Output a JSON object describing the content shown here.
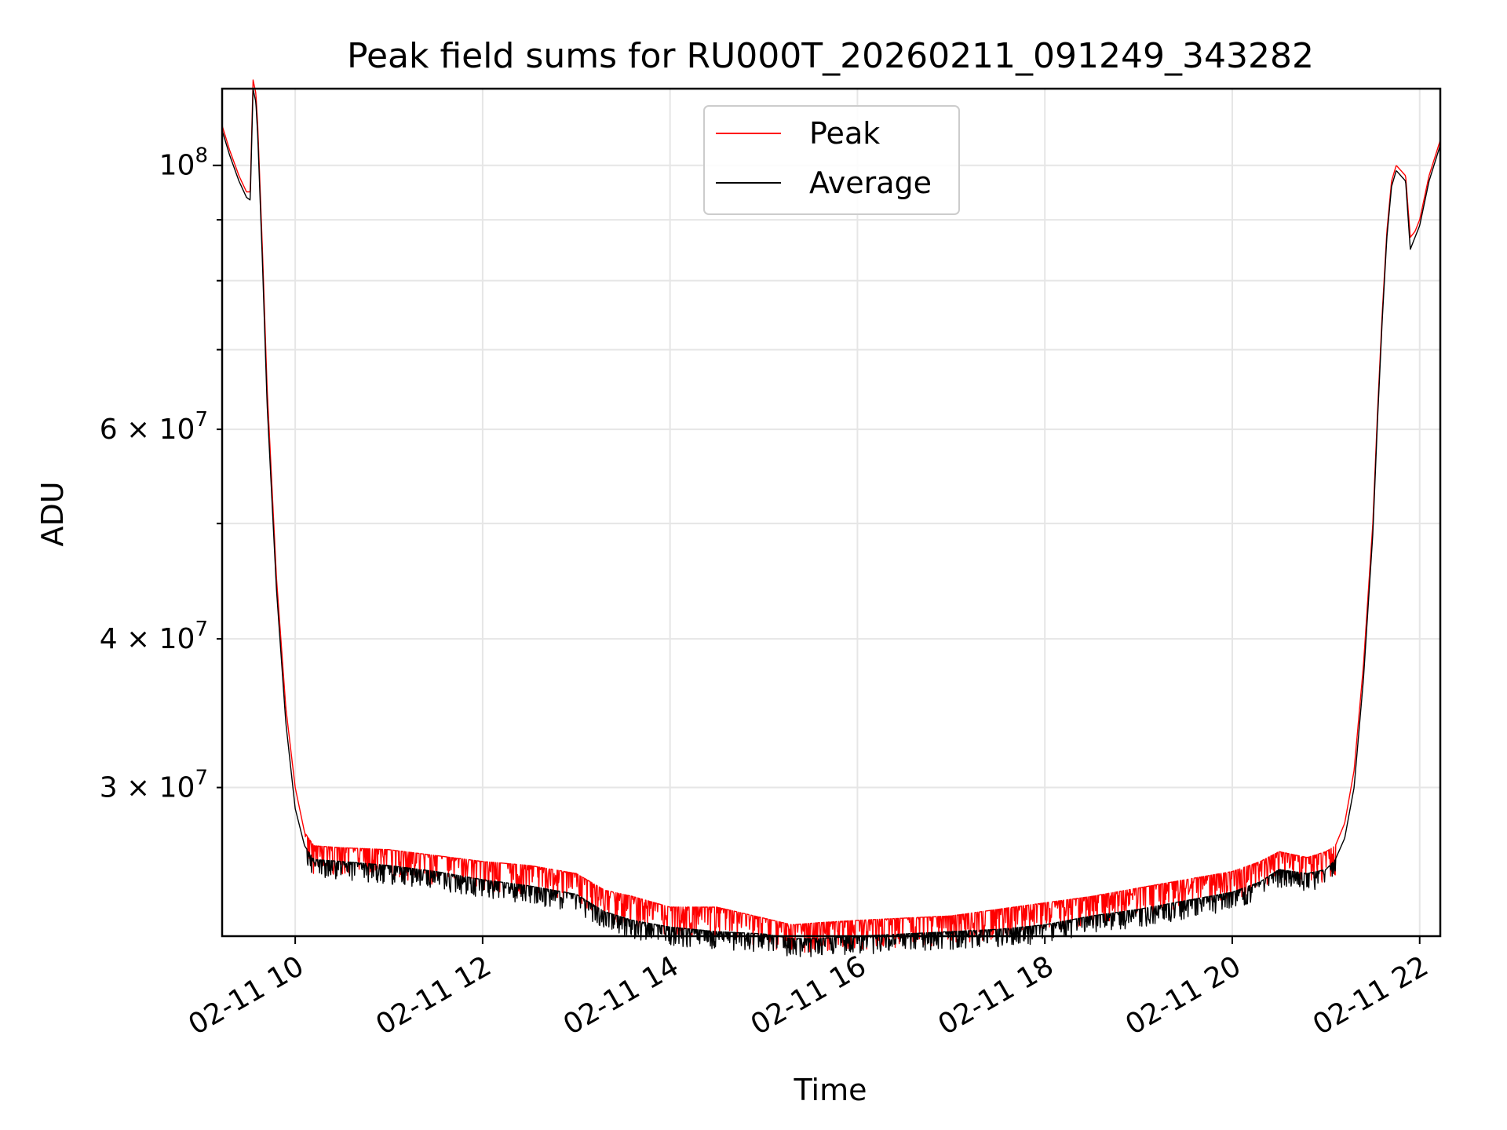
{
  "chart_data": {
    "type": "line",
    "title": "Peak field sums for RU000T_20260211_091249_343282",
    "xlabel": "Time",
    "ylabel": "ADU",
    "x_unit": "hours since 02-11 00:00",
    "xlim": [
      9.22,
      22.22
    ],
    "ylim": [
      22500000.0,
      116000000.0
    ],
    "yscale": "log",
    "grid": true,
    "legend_position": "top-center",
    "x_ticks": [
      {
        "value": 10,
        "label": "02-11 10"
      },
      {
        "value": 12,
        "label": "02-11 12"
      },
      {
        "value": 14,
        "label": "02-11 14"
      },
      {
        "value": 16,
        "label": "02-11 16"
      },
      {
        "value": 18,
        "label": "02-11 18"
      },
      {
        "value": 20,
        "label": "02-11 20"
      },
      {
        "value": 22,
        "label": "02-11 22"
      }
    ],
    "y_ticks_major": [
      {
        "value": 100000000,
        "label_base": "10",
        "label_exp": "8",
        "label_mult": ""
      }
    ],
    "y_ticks_minor": [
      {
        "value": 30000000,
        "label_base": "3 × 10",
        "label_exp": "7"
      },
      {
        "value": 40000000,
        "label_base": "4 × 10",
        "label_exp": "7"
      },
      {
        "value": 50000000,
        "label_base": "",
        "label_exp": ""
      },
      {
        "value": 60000000,
        "label_base": "6 × 10",
        "label_exp": "7"
      },
      {
        "value": 70000000,
        "label_base": "",
        "label_exp": ""
      },
      {
        "value": 80000000,
        "label_base": "",
        "label_exp": ""
      },
      {
        "value": 90000000,
        "label_base": "",
        "label_exp": ""
      }
    ],
    "series": [
      {
        "name": "Peak",
        "color": "#ff0000",
        "x": [
          9.22,
          9.3,
          9.4,
          9.48,
          9.52,
          9.55,
          9.58,
          9.6,
          9.65,
          9.7,
          9.8,
          9.9,
          10.0,
          10.1,
          10.2,
          10.5,
          11.0,
          11.5,
          12.0,
          12.5,
          13.0,
          13.3,
          13.6,
          14.0,
          14.5,
          15.0,
          15.3,
          15.6,
          16.0,
          16.5,
          17.0,
          17.5,
          18.0,
          18.5,
          19.0,
          19.5,
          20.0,
          20.3,
          20.5,
          20.8,
          21.0,
          21.1,
          21.2,
          21.3,
          21.4,
          21.5,
          21.55,
          21.6,
          21.65,
          21.7,
          21.75,
          21.8,
          21.85,
          21.9,
          21.95,
          22.0,
          22.1,
          22.22
        ],
        "values": [
          108000000,
          103000000,
          98000000,
          95000000,
          95000000,
          118000000,
          115000000,
          108000000,
          85000000,
          65000000,
          45000000,
          35000000,
          30000000,
          27500000,
          26800000,
          26700000,
          26600000,
          26300000,
          26000000,
          25800000,
          25400000,
          24600000,
          24300000,
          23800000,
          23800000,
          23300000,
          23000000,
          23100000,
          23200000,
          23300000,
          23400000,
          23700000,
          24000000,
          24300000,
          24700000,
          25100000,
          25500000,
          26000000,
          26500000,
          26200000,
          26500000,
          26800000,
          28000000,
          31000000,
          38000000,
          50000000,
          62000000,
          75000000,
          88000000,
          97000000,
          100000000,
          99000000,
          98000000,
          87000000,
          88000000,
          90000000,
          98000000,
          105000000
        ]
      },
      {
        "name": "Average",
        "color": "#000000",
        "x": [
          9.22,
          9.3,
          9.4,
          9.48,
          9.52,
          9.55,
          9.58,
          9.6,
          9.65,
          9.7,
          9.8,
          9.9,
          10.0,
          10.1,
          10.2,
          10.5,
          11.0,
          11.5,
          12.0,
          12.5,
          13.0,
          13.3,
          13.6,
          14.0,
          14.5,
          15.0,
          15.3,
          15.6,
          16.0,
          16.5,
          17.0,
          17.5,
          18.0,
          18.5,
          19.0,
          19.5,
          20.0,
          20.3,
          20.5,
          20.8,
          21.0,
          21.1,
          21.2,
          21.3,
          21.4,
          21.5,
          21.55,
          21.6,
          21.65,
          21.7,
          21.75,
          21.8,
          21.85,
          21.9,
          21.95,
          22.0,
          22.1,
          22.22
        ],
        "values": [
          107000000,
          102000000,
          97000000,
          94000000,
          93500000,
          116000000,
          113000000,
          106000000,
          83000000,
          63000000,
          44000000,
          34000000,
          28800000,
          26800000,
          26100000,
          26000000,
          25800000,
          25500000,
          25100000,
          24800000,
          24400000,
          23600000,
          23200000,
          22900000,
          22700000,
          22600000,
          22400000,
          22400000,
          22500000,
          22600000,
          22700000,
          22800000,
          23000000,
          23400000,
          23700000,
          24100000,
          24500000,
          25000000,
          25600000,
          25400000,
          25600000,
          26100000,
          27200000,
          30000000,
          37000000,
          49000000,
          61000000,
          74000000,
          87000000,
          96000000,
          99000000,
          98000000,
          97000000,
          85000000,
          87000000,
          89000000,
          97000000,
          104000000
        ]
      }
    ]
  }
}
